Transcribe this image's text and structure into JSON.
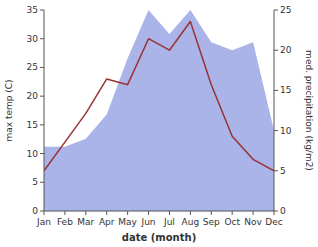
{
  "chart_data": {
    "type": "line",
    "xlabel": "date (month)",
    "ylabel": "max temp (C)",
    "y2label": "med. precipitation (kg/m2)",
    "categories": [
      "Jan",
      "Feb",
      "Mar",
      "Apr",
      "May",
      "Jun",
      "Jul",
      "Aug",
      "Sep",
      "Oct",
      "Nov",
      "Dec"
    ],
    "series": [
      {
        "type": "area",
        "axis": "y2",
        "color": "#aab4e8",
        "values": [
          8,
          8,
          9,
          12,
          19,
          25,
          22,
          25,
          21,
          20,
          21,
          10
        ]
      },
      {
        "type": "line",
        "color": "#993333",
        "values": [
          7,
          12,
          17,
          23,
          22,
          30,
          28,
          33,
          22,
          13,
          9,
          7
        ]
      }
    ],
    "ylim": [
      0,
      35
    ],
    "yticks": [
      0,
      5,
      10,
      15,
      20,
      25,
      30,
      35
    ],
    "y2lim": [
      0,
      25
    ],
    "y2ticks": [
      0,
      5,
      10,
      15,
      20,
      25
    ],
    "grid": false
  }
}
